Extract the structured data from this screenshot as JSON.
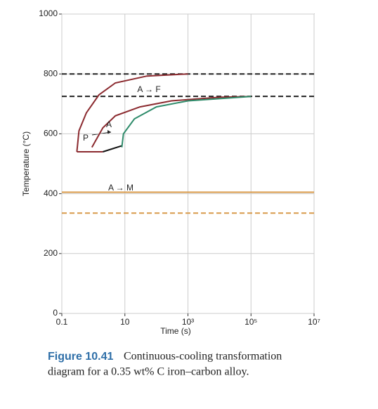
{
  "chart_data": {
    "type": "line",
    "ylabel": "Temperature (°C)",
    "xlabel": "Time (s)",
    "xscale": "log",
    "xlim": [
      0.1,
      10000000
    ],
    "xticks": [
      0.1,
      10,
      {
        "value": 1000,
        "label": "10³"
      },
      {
        "value": 100000,
        "label": "10⁵"
      },
      {
        "value": 10000000,
        "label": "10⁷"
      }
    ],
    "ylim": [
      0,
      1000
    ],
    "yticks": [
      0,
      200,
      400,
      600,
      800,
      1000
    ],
    "grid": true,
    "series": [
      {
        "color": "#8b2a2f",
        "x": [
          0.3,
          0.35,
          0.6,
          1.5,
          5,
          50,
          1000
        ],
        "values": [
          540,
          610,
          670,
          730,
          770,
          793,
          800
        ]
      },
      {
        "color": "#8b2a2f",
        "x": [
          0.3,
          2
        ],
        "values": [
          540,
          540
        ]
      },
      {
        "color": "#111111",
        "x": [
          2,
          8
        ],
        "values": [
          540,
          560
        ]
      },
      {
        "color": "#8b2a2f",
        "x": [
          0.9,
          2,
          5,
          30,
          300,
          10000,
          100000
        ],
        "values": [
          555,
          620,
          660,
          690,
          710,
          722,
          725
        ]
      },
      {
        "color": "#2e8b6a",
        "x": [
          8,
          9,
          20,
          100,
          1000,
          100000
        ],
        "values": [
          555,
          600,
          650,
          690,
          710,
          725
        ]
      }
    ],
    "hlines": [
      {
        "value": 800,
        "color": "#222222",
        "dash": true
      },
      {
        "value": 725,
        "color": "#222222",
        "dash": true
      },
      {
        "value": 405,
        "color": "#d89a4a",
        "dash": false
      },
      {
        "value": 335,
        "color": "#d89a4a",
        "dash": true
      }
    ],
    "annotations": [
      "A → F",
      "A",
      "P",
      "A → M"
    ]
  },
  "caption": {
    "label": "Figure 10.41",
    "lines": [
      "Continuous-cooling transformation",
      "diagram for a 0.35 wt% C iron–carbon alloy."
    ]
  }
}
